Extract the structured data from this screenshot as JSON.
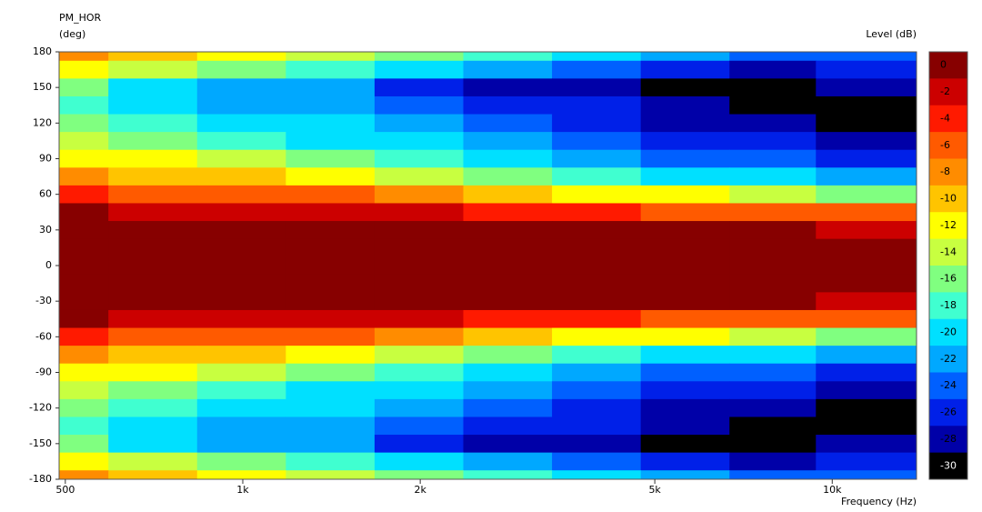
{
  "chart_data": {
    "type": "heatmap",
    "title": "PM_HOR",
    "y_label": "(deg)",
    "x_label": "Frequency  (Hz)",
    "colorbar_label": "Level  (dB)",
    "log_x": true,
    "xlim": [
      488,
      13900
    ],
    "ylim": [
      -180,
      180
    ],
    "xticks": [
      500,
      {
        "value": 1000,
        "label": "1k"
      },
      {
        "value": 2000,
        "label": "2k"
      },
      {
        "value": 5000,
        "label": "5k"
      },
      {
        "value": 10000,
        "label": "10k"
      }
    ],
    "yticks": [
      180,
      150,
      120,
      90,
      60,
      30,
      0,
      -30,
      -60,
      -90,
      -120,
      -150,
      -180
    ],
    "x": [
      500,
      700,
      1000,
      1400,
      2000,
      2800,
      4000,
      5600,
      8000,
      11000
    ],
    "y": [
      180,
      165,
      150,
      135,
      120,
      105,
      90,
      75,
      60,
      45,
      30,
      15,
      0,
      -15,
      -30,
      -45,
      -60,
      -75,
      -90,
      -105,
      -120,
      -135,
      -150,
      -165,
      -180
    ],
    "z": [
      [
        -8,
        -10,
        -12,
        -14,
        -16,
        -18,
        -20,
        -22,
        -24,
        -24
      ],
      [
        -12,
        -14,
        -16,
        -18,
        -20,
        -22,
        -24,
        -26,
        -28,
        -26
      ],
      [
        -16,
        -20,
        -22,
        -22,
        -26,
        -28,
        -28,
        -30,
        -30,
        -28
      ],
      [
        -18,
        -20,
        -21,
        -21,
        -24,
        -26,
        -26,
        -28,
        -30,
        -30
      ],
      [
        -16,
        -18,
        -20,
        -20,
        -22,
        -24,
        -26,
        -28,
        -28,
        -30
      ],
      [
        -14,
        -16,
        -18,
        -19,
        -20,
        -22,
        -24,
        -26,
        -26,
        -28
      ],
      [
        -11,
        -12,
        -14,
        -16,
        -18,
        -20,
        -22,
        -24,
        -24,
        -26
      ],
      [
        -8,
        -9,
        -10,
        -12,
        -14,
        -16,
        -18,
        -20,
        -20,
        -22
      ],
      [
        -4,
        -5,
        -5,
        -6,
        -7,
        -10,
        -12,
        -12,
        -14,
        -16
      ],
      [
        0,
        -1,
        -1,
        -2,
        -2,
        -3,
        -4,
        -5,
        -6,
        -6
      ],
      [
        0,
        0,
        0,
        0,
        0,
        0,
        0,
        0,
        0,
        -2
      ],
      [
        0,
        0,
        0,
        0,
        0,
        0,
        0,
        0,
        0,
        0
      ],
      [
        0,
        0,
        0,
        0,
        0,
        0,
        0,
        0,
        0,
        0
      ],
      [
        0,
        0,
        0,
        0,
        0,
        0,
        0,
        0,
        0,
        0
      ],
      [
        0,
        0,
        0,
        0,
        0,
        0,
        0,
        0,
        0,
        -2
      ],
      [
        0,
        -1,
        -1,
        -2,
        -2,
        -3,
        -4,
        -5,
        -6,
        -6
      ],
      [
        -4,
        -5,
        -5,
        -6,
        -7,
        -10,
        -12,
        -12,
        -14,
        -16
      ],
      [
        -8,
        -9,
        -10,
        -12,
        -14,
        -16,
        -18,
        -20,
        -20,
        -22
      ],
      [
        -11,
        -12,
        -14,
        -16,
        -18,
        -20,
        -22,
        -24,
        -24,
        -26
      ],
      [
        -14,
        -16,
        -18,
        -19,
        -20,
        -22,
        -24,
        -26,
        -26,
        -28
      ],
      [
        -16,
        -18,
        -20,
        -20,
        -22,
        -24,
        -26,
        -28,
        -28,
        -30
      ],
      [
        -18,
        -20,
        -21,
        -21,
        -24,
        -26,
        -26,
        -28,
        -30,
        -30
      ],
      [
        -16,
        -20,
        -22,
        -22,
        -26,
        -28,
        -28,
        -30,
        -30,
        -28
      ],
      [
        -12,
        -14,
        -16,
        -18,
        -20,
        -22,
        -24,
        -26,
        -28,
        -26
      ],
      [
        -8,
        -10,
        -12,
        -14,
        -16,
        -18,
        -20,
        -22,
        -24,
        -24
      ]
    ],
    "colorbar": {
      "ticks": [
        0,
        -2,
        -4,
        -6,
        -8,
        -10,
        -12,
        -14,
        -16,
        -18,
        -20,
        -22,
        -24,
        -26,
        -28,
        -30
      ],
      "colors": [
        "#870000",
        "#cc0000",
        "#ff1a00",
        "#ff5a00",
        "#ff8c00",
        "#ffc400",
        "#ffff00",
        "#c8ff40",
        "#80ff80",
        "#40ffd0",
        "#00e0ff",
        "#00a8ff",
        "#0060ff",
        "#0020e8",
        "#0000a8",
        "#000000"
      ]
    }
  }
}
